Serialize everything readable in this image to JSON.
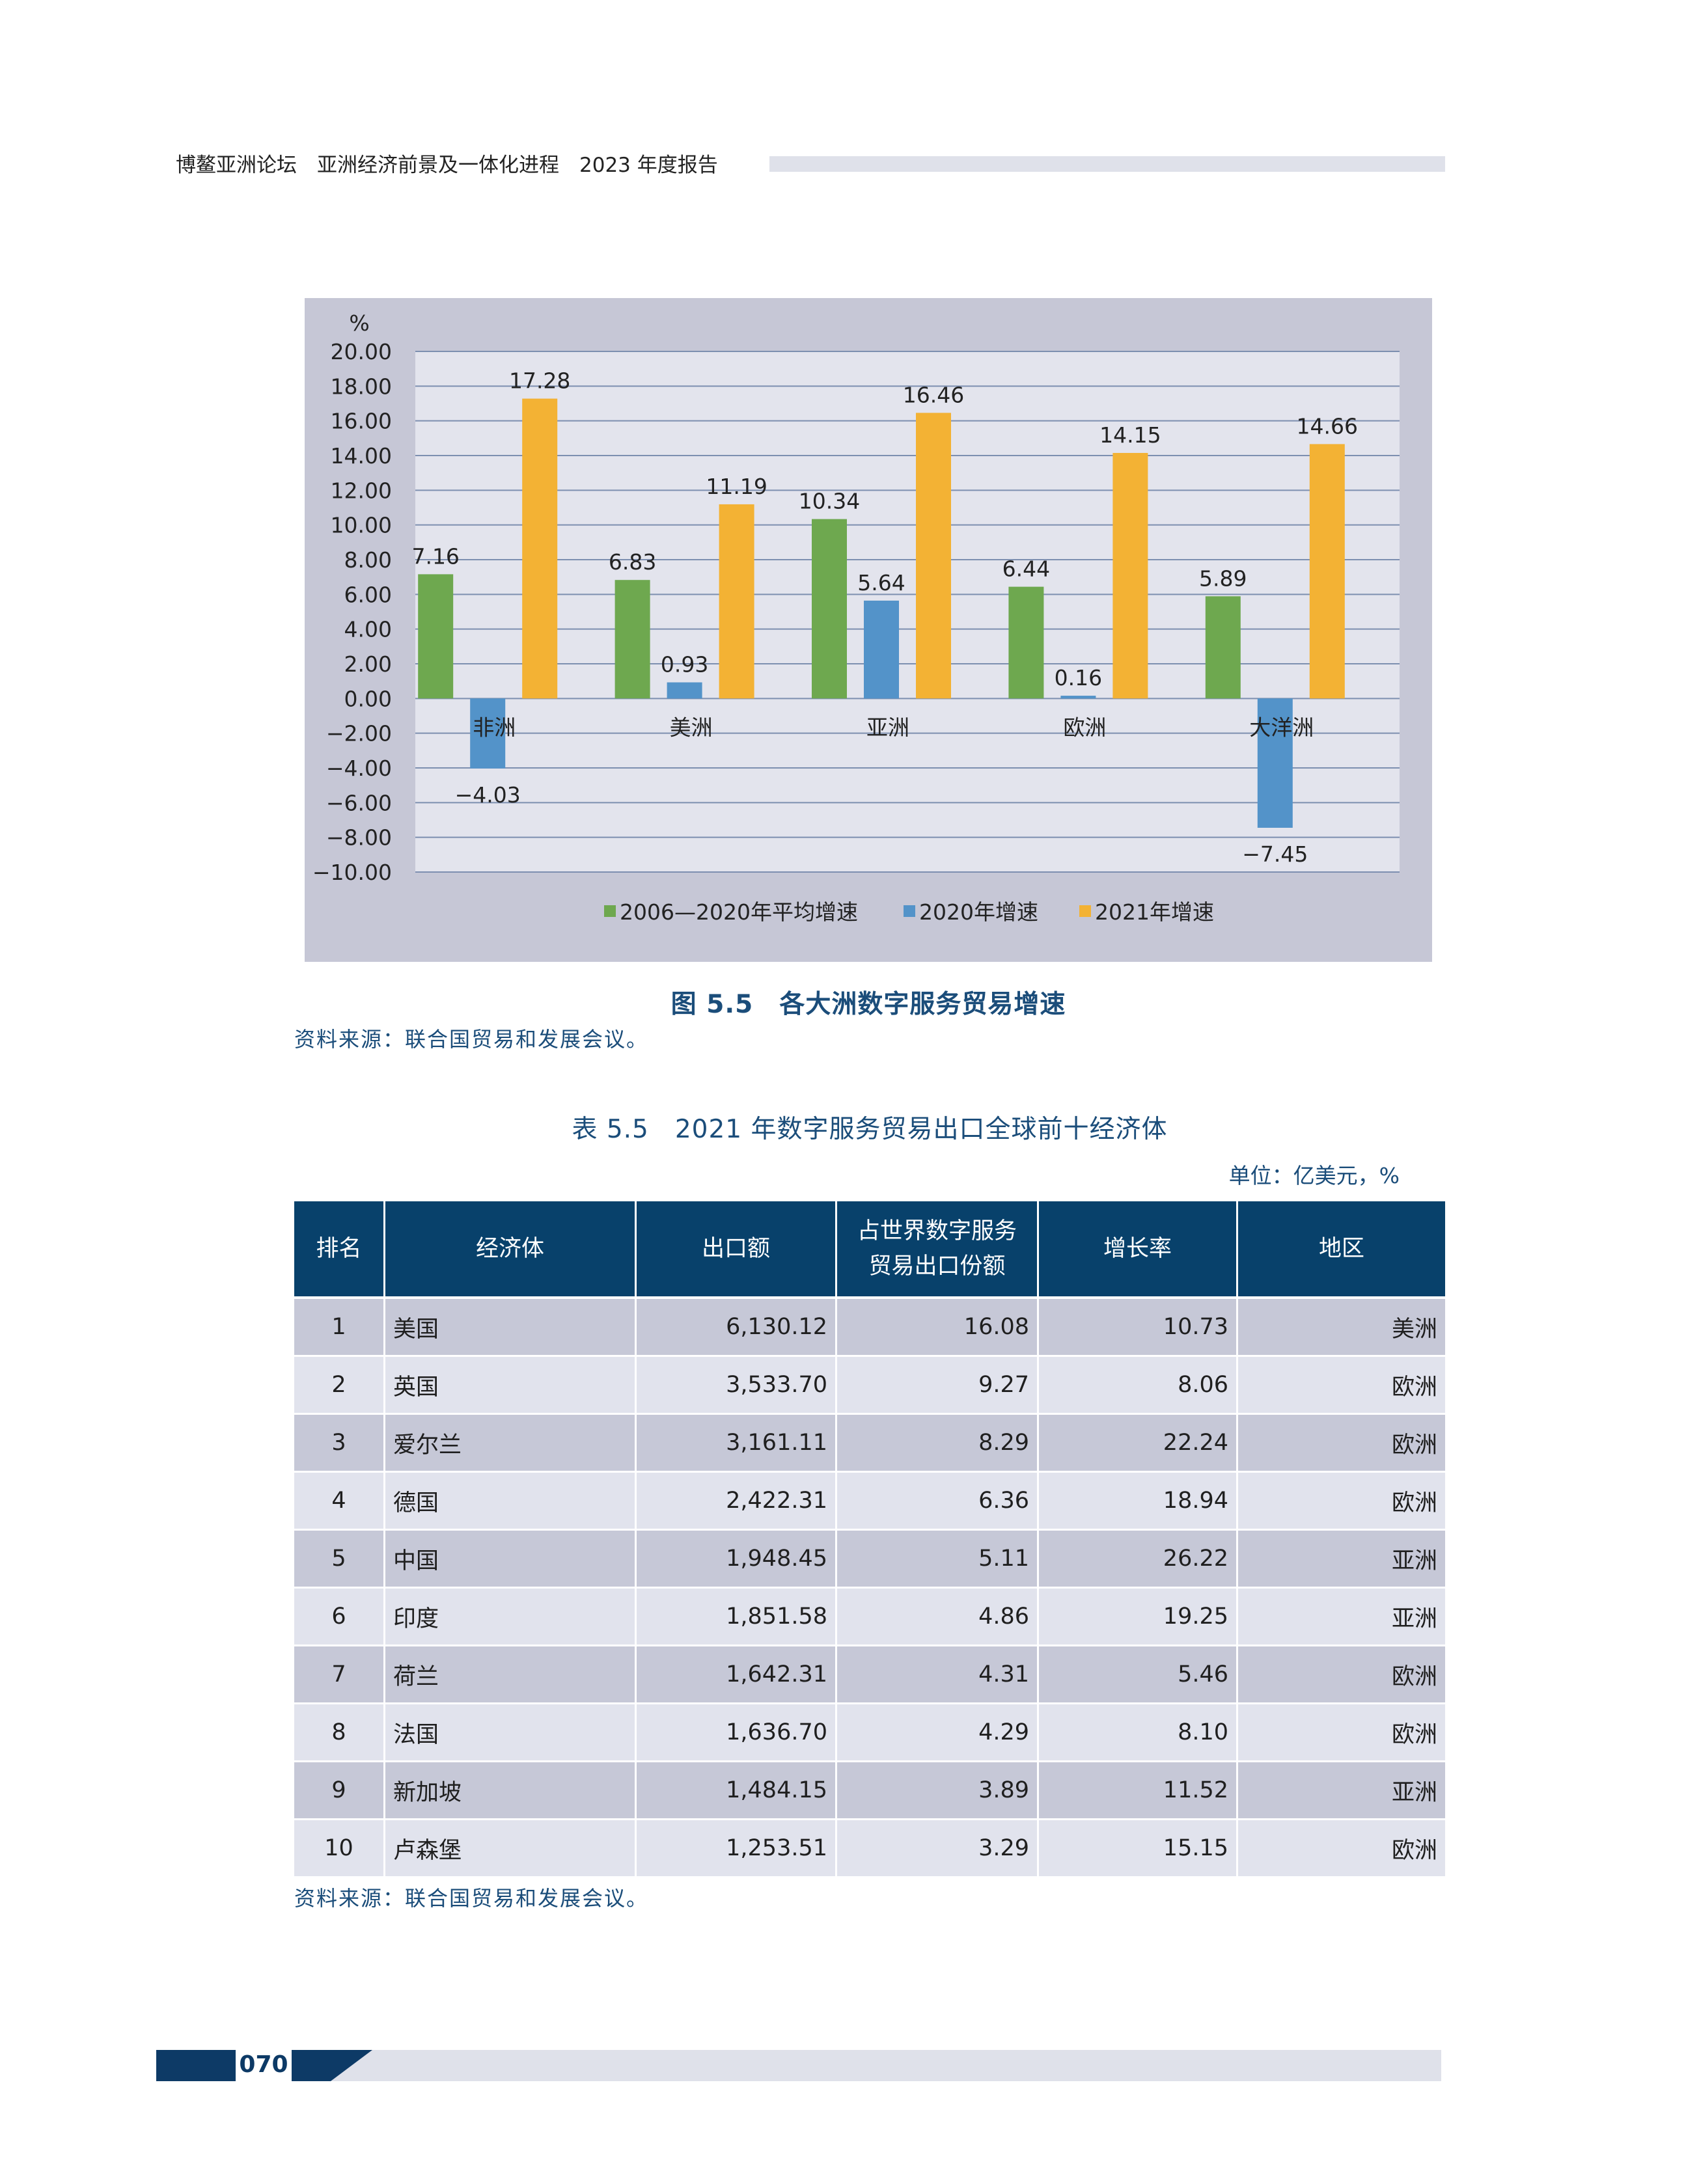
{
  "header": {
    "text": "博鳌亚洲论坛　亚洲经济前景及一体化进程　2023 年度报告"
  },
  "figure": {
    "caption": "图 5.5　各大洲数字服务贸易增速",
    "source": "资料来源：联合国贸易和发展会议。"
  },
  "chart_data": {
    "type": "bar",
    "title": "",
    "unit_label": "%",
    "categories": [
      "非洲",
      "美洲",
      "亚洲",
      "欧洲",
      "大洋洲"
    ],
    "series": [
      {
        "name": "2006—2020年平均增速",
        "color": "#6ea84f",
        "values": [
          7.16,
          6.83,
          10.34,
          6.44,
          5.89
        ]
      },
      {
        "name": "2020年增速",
        "color": "#5393c9",
        "values": [
          -4.03,
          0.93,
          5.64,
          0.16,
          -7.45
        ]
      },
      {
        "name": "2021年增速",
        "color": "#f3b234",
        "values": [
          17.28,
          11.19,
          16.46,
          14.15,
          14.66
        ]
      }
    ],
    "data_labels": [
      [
        "7.16",
        "6.83",
        "10.34",
        "6.44",
        "5.89"
      ],
      [
        "−4.03",
        "0.93",
        "5.64",
        "0.16",
        "−7.45"
      ],
      [
        "17.28",
        "11.19",
        "16.46",
        "14.15",
        "14.66"
      ]
    ],
    "ylim": [
      -10,
      20
    ],
    "yticks": [
      "−10.00",
      "−8.00",
      "−6.00",
      "−4.00",
      "−2.00",
      "0.00",
      "2.00",
      "4.00",
      "6.00",
      "8.00",
      "10.00",
      "12.00",
      "14.00",
      "16.00",
      "18.00",
      "20.00"
    ],
    "ytick_values": [
      -10,
      -8,
      -6,
      -4,
      -2,
      0,
      2,
      4,
      6,
      8,
      10,
      12,
      14,
      16,
      18,
      20
    ],
    "grid": true,
    "legend_position": "bottom",
    "colors": {
      "plot_bg": "#e3e4ed",
      "frame_bg": "#c6c7d6",
      "grid": "#7d8fb0"
    }
  },
  "table": {
    "title": "表 5.5　2021 年数字服务贸易出口全球前十经济体",
    "unit": "单位：亿美元，%",
    "headers": [
      "排名",
      "经济体",
      "出口额",
      "占世界数字服务\n贸易出口份额",
      "增长率",
      "地区"
    ],
    "rows": [
      {
        "rank": "1",
        "economy": "美国",
        "exports": "6,130.12",
        "share": "16.08",
        "growth": "10.73",
        "region": "美洲"
      },
      {
        "rank": "2",
        "economy": "英国",
        "exports": "3,533.70",
        "share": "9.27",
        "growth": "8.06",
        "region": "欧洲"
      },
      {
        "rank": "3",
        "economy": "爱尔兰",
        "exports": "3,161.11",
        "share": "8.29",
        "growth": "22.24",
        "region": "欧洲"
      },
      {
        "rank": "4",
        "economy": "德国",
        "exports": "2,422.31",
        "share": "6.36",
        "growth": "18.94",
        "region": "欧洲"
      },
      {
        "rank": "5",
        "economy": "中国",
        "exports": "1,948.45",
        "share": "5.11",
        "growth": "26.22",
        "region": "亚洲"
      },
      {
        "rank": "6",
        "economy": "印度",
        "exports": "1,851.58",
        "share": "4.86",
        "growth": "19.25",
        "region": "亚洲"
      },
      {
        "rank": "7",
        "economy": "荷兰",
        "exports": "1,642.31",
        "share": "4.31",
        "growth": "5.46",
        "region": "欧洲"
      },
      {
        "rank": "8",
        "economy": "法国",
        "exports": "1,636.70",
        "share": "4.29",
        "growth": "8.10",
        "region": "欧洲"
      },
      {
        "rank": "9",
        "economy": "新加坡",
        "exports": "1,484.15",
        "share": "3.89",
        "growth": "11.52",
        "region": "亚洲"
      },
      {
        "rank": "10",
        "economy": "卢森堡",
        "exports": "1,253.51",
        "share": "3.29",
        "growth": "15.15",
        "region": "欧洲"
      }
    ],
    "source": "资料来源：联合国贸易和发展会议。"
  },
  "footer": {
    "page_number": "070",
    "colors": {
      "dark": "#0d3a66",
      "light": "#dfe1ea"
    }
  }
}
